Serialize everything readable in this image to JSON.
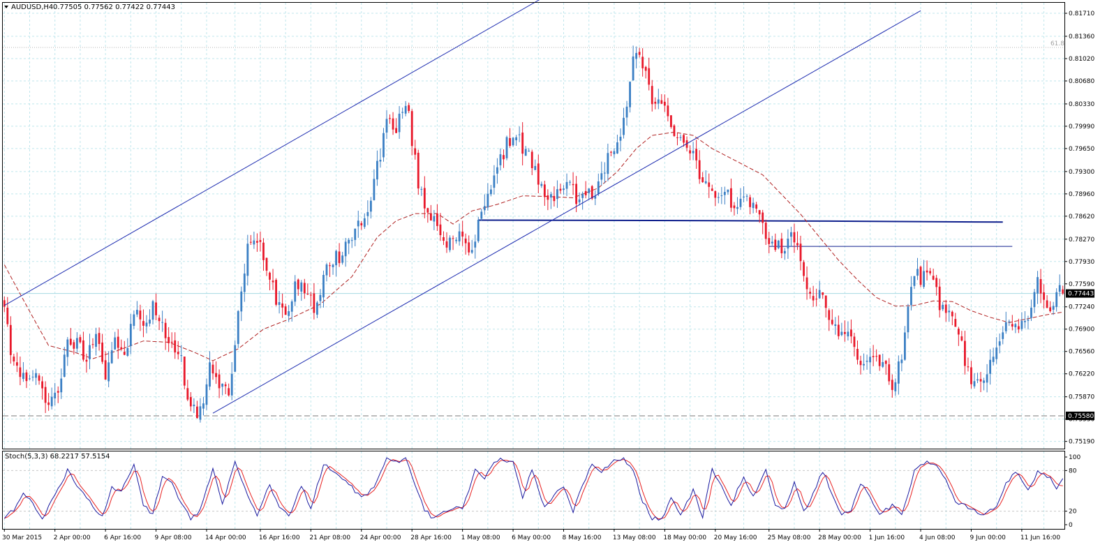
{
  "header": {
    "symbol_label": "AUDUSD,H4",
    "quote_values": "0.77505 0.77562 0.77422 0.77443",
    "menu_arrow": "triangle-down-icon"
  },
  "colors": {
    "background": "#ffffff",
    "grid": "#bfe6ec",
    "bull_candle": "#3a7fc4",
    "bear_candle": "#e8182a",
    "channel_line": "#1d2cb0",
    "moving_average": "#b02020",
    "stoch_main": "#1a1aa0",
    "stoch_signal": "#e82020",
    "level_line": "#0d1e8c",
    "price_label_bg": "#000000"
  },
  "chart_data": {
    "type": "candlestick",
    "symbol": "AUDUSD",
    "timeframe": "H4",
    "ohlc_header": {
      "open": 0.77505,
      "high": 0.77562,
      "low": 0.77422,
      "close": 0.77443
    },
    "y_ticks": [
      "0.81710",
      "0.81360",
      "0.81020",
      "0.80680",
      "0.80330",
      "0.79990",
      "0.79650",
      "0.79300",
      "0.78960",
      "0.78620",
      "0.78270",
      "0.77930",
      "0.77590",
      "0.77240",
      "0.76900",
      "0.76560",
      "0.76220",
      "0.75870",
      "0.75530",
      "0.75190"
    ],
    "x_ticks": [
      "30 Mar 2015",
      "2 Apr 00:00",
      "6 Apr 16:00",
      "9 Apr 08:00",
      "14 Apr 00:00",
      "16 Apr 16:00",
      "21 Apr 08:00",
      "24 Apr 00:00",
      "28 Apr 16:00",
      "1 May 08:00",
      "6 May 00:00",
      "8 May 16:00",
      "13 May 08:00",
      "18 May 00:00",
      "20 May 16:00",
      "25 May 08:00",
      "28 May 00:00",
      "1 Jun 16:00",
      "4 Jun 08:00",
      "9 Jun 00:00",
      "11 Jun 16:00"
    ],
    "ylim": [
      0.7508,
      0.8187
    ],
    "price_labels": {
      "current": "0.77443",
      "support": "0.75580"
    },
    "fib_label": "61.8",
    "fib_level": 0.8119,
    "support_level": 0.7558,
    "current_price": 0.77443,
    "close_anchors": [
      [
        0,
        0.7735
      ],
      [
        2,
        0.7645
      ],
      [
        5,
        0.7625
      ],
      [
        8,
        0.7605
      ],
      [
        11,
        0.762
      ],
      [
        14,
        0.7575
      ],
      [
        17,
        0.76
      ],
      [
        20,
        0.7665
      ],
      [
        23,
        0.767
      ],
      [
        26,
        0.7645
      ],
      [
        29,
        0.7695
      ],
      [
        32,
        0.762
      ],
      [
        35,
        0.768
      ],
      [
        38,
        0.764
      ],
      [
        41,
        0.772
      ],
      [
        44,
        0.769
      ],
      [
        47,
        0.7725
      ],
      [
        50,
        0.769
      ],
      [
        53,
        0.767
      ],
      [
        56,
        0.764
      ],
      [
        59,
        0.757
      ],
      [
        62,
        0.756
      ],
      [
        65,
        0.764
      ],
      [
        68,
        0.76
      ],
      [
        71,
        0.759
      ],
      [
        74,
        0.771
      ],
      [
        77,
        0.781
      ],
      [
        80,
        0.783
      ],
      [
        83,
        0.779
      ],
      [
        86,
        0.774
      ],
      [
        89,
        0.7715
      ],
      [
        92,
        0.776
      ],
      [
        95,
        0.7755
      ],
      [
        98,
        0.772
      ],
      [
        101,
        0.777
      ],
      [
        104,
        0.779
      ],
      [
        107,
        0.781
      ],
      [
        110,
        0.783
      ],
      [
        113,
        0.7855
      ],
      [
        116,
        0.789
      ],
      [
        119,
        0.796
      ],
      [
        121,
        0.801
      ],
      [
        124,
        0.799
      ],
      [
        127,
        0.804
      ],
      [
        129,
        0.798
      ],
      [
        131,
        0.791
      ],
      [
        133,
        0.788
      ],
      [
        136,
        0.786
      ],
      [
        139,
        0.783
      ],
      [
        142,
        0.782
      ],
      [
        145,
        0.783
      ],
      [
        148,
        0.78
      ],
      [
        150,
        0.786
      ],
      [
        153,
        0.79
      ],
      [
        156,
        0.793
      ],
      [
        159,
        0.797
      ],
      [
        161,
        0.799
      ],
      [
        164,
        0.797
      ],
      [
        167,
        0.7945
      ],
      [
        170,
        0.79
      ],
      [
        172,
        0.788
      ],
      [
        175,
        0.79
      ],
      [
        178,
        0.792
      ],
      [
        181,
        0.789
      ],
      [
        184,
        0.789
      ],
      [
        187,
        0.79
      ],
      [
        190,
        0.7935
      ],
      [
        193,
        0.797
      ],
      [
        195,
        0.799
      ],
      [
        197,
        0.804
      ],
      [
        199,
        0.811
      ],
      [
        201,
        0.81
      ],
      [
        203,
        0.808
      ],
      [
        205,
        0.8045
      ],
      [
        208,
        0.803
      ],
      [
        211,
        0.7995
      ],
      [
        214,
        0.7985
      ],
      [
        217,
        0.796
      ],
      [
        220,
        0.793
      ],
      [
        223,
        0.79
      ],
      [
        226,
        0.788
      ],
      [
        229,
        0.789
      ],
      [
        232,
        0.788
      ],
      [
        235,
        0.7895
      ],
      [
        238,
        0.787
      ],
      [
        241,
        0.783
      ],
      [
        244,
        0.782
      ],
      [
        247,
        0.7815
      ],
      [
        250,
        0.783
      ],
      [
        252,
        0.779
      ],
      [
        255,
        0.7745
      ],
      [
        258,
        0.774
      ],
      [
        261,
        0.771
      ],
      [
        264,
        0.769
      ],
      [
        267,
        0.768
      ],
      [
        270,
        0.764
      ],
      [
        273,
        0.765
      ],
      [
        276,
        0.764
      ],
      [
        279,
        0.7625
      ],
      [
        281,
        0.7605
      ],
      [
        284,
        0.7655
      ],
      [
        286,
        0.772
      ],
      [
        288,
        0.777
      ],
      [
        291,
        0.777
      ],
      [
        294,
        0.776
      ],
      [
        296,
        0.773
      ],
      [
        298,
        0.772
      ],
      [
        300,
        0.77
      ],
      [
        302,
        0.768
      ],
      [
        304,
        0.764
      ],
      [
        306,
        0.761
      ],
      [
        308,
        0.7605
      ],
      [
        311,
        0.763
      ],
      [
        314,
        0.767
      ],
      [
        317,
        0.7705
      ],
      [
        320,
        0.7685
      ],
      [
        323,
        0.77
      ],
      [
        325,
        0.773
      ],
      [
        327,
        0.776
      ],
      [
        329,
        0.774
      ],
      [
        331,
        0.772
      ],
      [
        333,
        0.7745
      ],
      [
        335,
        0.7744
      ]
    ],
    "moving_average": {
      "type": "dashed",
      "anchors": [
        [
          0,
          0.7788
        ],
        [
          8,
          0.7717
        ],
        [
          14,
          0.7665
        ],
        [
          22,
          0.7655
        ],
        [
          28,
          0.7645
        ],
        [
          35,
          0.7656
        ],
        [
          44,
          0.7672
        ],
        [
          52,
          0.767
        ],
        [
          60,
          0.7655
        ],
        [
          66,
          0.7642
        ],
        [
          74,
          0.766
        ],
        [
          82,
          0.769
        ],
        [
          90,
          0.7705
        ],
        [
          100,
          0.7728
        ],
        [
          110,
          0.777
        ],
        [
          118,
          0.783
        ],
        [
          124,
          0.7855
        ],
        [
          130,
          0.7866
        ],
        [
          137,
          0.7866
        ],
        [
          142,
          0.785
        ],
        [
          148,
          0.787
        ],
        [
          156,
          0.788
        ],
        [
          164,
          0.7893
        ],
        [
          172,
          0.7892
        ],
        [
          180,
          0.789
        ],
        [
          188,
          0.7905
        ],
        [
          194,
          0.793
        ],
        [
          200,
          0.7965
        ],
        [
          205,
          0.7985
        ],
        [
          212,
          0.799
        ],
        [
          218,
          0.7985
        ],
        [
          224,
          0.7965
        ],
        [
          232,
          0.7945
        ],
        [
          240,
          0.7925
        ],
        [
          246,
          0.7895
        ],
        [
          252,
          0.7865
        ],
        [
          258,
          0.783
        ],
        [
          264,
          0.7795
        ],
        [
          270,
          0.7765
        ],
        [
          276,
          0.7738
        ],
        [
          282,
          0.7725
        ],
        [
          288,
          0.7726
        ],
        [
          294,
          0.7733
        ],
        [
          300,
          0.7732
        ],
        [
          306,
          0.7718
        ],
        [
          312,
          0.7708
        ],
        [
          318,
          0.77
        ],
        [
          324,
          0.7706
        ],
        [
          330,
          0.7712
        ],
        [
          335,
          0.7716
        ]
      ]
    },
    "channel_lines": [
      {
        "name": "upper-channel",
        "from": [
          0,
          0.7726
        ],
        "to": [
          176,
          0.821
        ]
      },
      {
        "name": "lower-channel",
        "from": [
          66,
          0.7562
        ],
        "to": [
          290,
          0.8175
        ]
      }
    ],
    "horizontal_levels": [
      {
        "name": "resistance-thick",
        "from": 150,
        "to": 316,
        "values": [
          0.7856,
          0.78555,
          0.78545,
          0.7853
        ]
      },
      {
        "name": "resistance-thin",
        "from": 242,
        "to": 319,
        "values": [
          0.7816,
          0.7816
        ]
      }
    ],
    "stochastic": {
      "label": "Stoch(5,3,3) 68.2217 57.5154",
      "main": 68.2217,
      "signal": 57.5154,
      "ylim": [
        0,
        100
      ],
      "y_ticks": [
        "100",
        "80",
        "20",
        "0"
      ],
      "levels": [
        80,
        20
      ],
      "anchors": [
        [
          0,
          12
        ],
        [
          3,
          22
        ],
        [
          6,
          48
        ],
        [
          9,
          30
        ],
        [
          12,
          10
        ],
        [
          16,
          42
        ],
        [
          20,
          80
        ],
        [
          24,
          50
        ],
        [
          28,
          28
        ],
        [
          31,
          12
        ],
        [
          34,
          55
        ],
        [
          37,
          48
        ],
        [
          41,
          90
        ],
        [
          44,
          30
        ],
        [
          47,
          15
        ],
        [
          50,
          72
        ],
        [
          53,
          62
        ],
        [
          56,
          30
        ],
        [
          59,
          8
        ],
        [
          62,
          22
        ],
        [
          66,
          82
        ],
        [
          69,
          30
        ],
        [
          73,
          92
        ],
        [
          76,
          55
        ],
        [
          80,
          15
        ],
        [
          84,
          60
        ],
        [
          87,
          25
        ],
        [
          90,
          12
        ],
        [
          94,
          58
        ],
        [
          97,
          22
        ],
        [
          101,
          90
        ],
        [
          104,
          78
        ],
        [
          107,
          70
        ],
        [
          110,
          55
        ],
        [
          113,
          40
        ],
        [
          117,
          55
        ],
        [
          121,
          98
        ],
        [
          124,
          92
        ],
        [
          127,
          100
        ],
        [
          130,
          60
        ],
        [
          133,
          22
        ],
        [
          136,
          8
        ],
        [
          139,
          18
        ],
        [
          142,
          25
        ],
        [
          145,
          22
        ],
        [
          149,
          80
        ],
        [
          152,
          70
        ],
        [
          155,
          95
        ],
        [
          158,
          97
        ],
        [
          161,
          92
        ],
        [
          164,
          40
        ],
        [
          167,
          82
        ],
        [
          171,
          25
        ],
        [
          174,
          45
        ],
        [
          177,
          55
        ],
        [
          180,
          20
        ],
        [
          183,
          60
        ],
        [
          186,
          90
        ],
        [
          189,
          80
        ],
        [
          193,
          95
        ],
        [
          196,
          98
        ],
        [
          199,
          80
        ],
        [
          202,
          35
        ],
        [
          205,
          10
        ],
        [
          208,
          8
        ],
        [
          211,
          40
        ],
        [
          214,
          12
        ],
        [
          218,
          50
        ],
        [
          221,
          12
        ],
        [
          224,
          82
        ],
        [
          227,
          55
        ],
        [
          230,
          30
        ],
        [
          234,
          72
        ],
        [
          237,
          42
        ],
        [
          241,
          82
        ],
        [
          244,
          28
        ],
        [
          247,
          22
        ],
        [
          250,
          62
        ],
        [
          253,
          20
        ],
        [
          256,
          45
        ],
        [
          259,
          80
        ],
        [
          262,
          45
        ],
        [
          265,
          15
        ],
        [
          268,
          20
        ],
        [
          271,
          62
        ],
        [
          274,
          40
        ],
        [
          277,
          15
        ],
        [
          281,
          28
        ],
        [
          284,
          12
        ],
        [
          288,
          80
        ],
        [
          292,
          95
        ],
        [
          295,
          85
        ],
        [
          298,
          65
        ],
        [
          301,
          35
        ],
        [
          304,
          28
        ],
        [
          307,
          20
        ],
        [
          310,
          12
        ],
        [
          314,
          28
        ],
        [
          317,
          60
        ],
        [
          320,
          80
        ],
        [
          324,
          52
        ],
        [
          327,
          78
        ],
        [
          331,
          70
        ],
        [
          333,
          50
        ],
        [
          335,
          68
        ]
      ]
    }
  }
}
